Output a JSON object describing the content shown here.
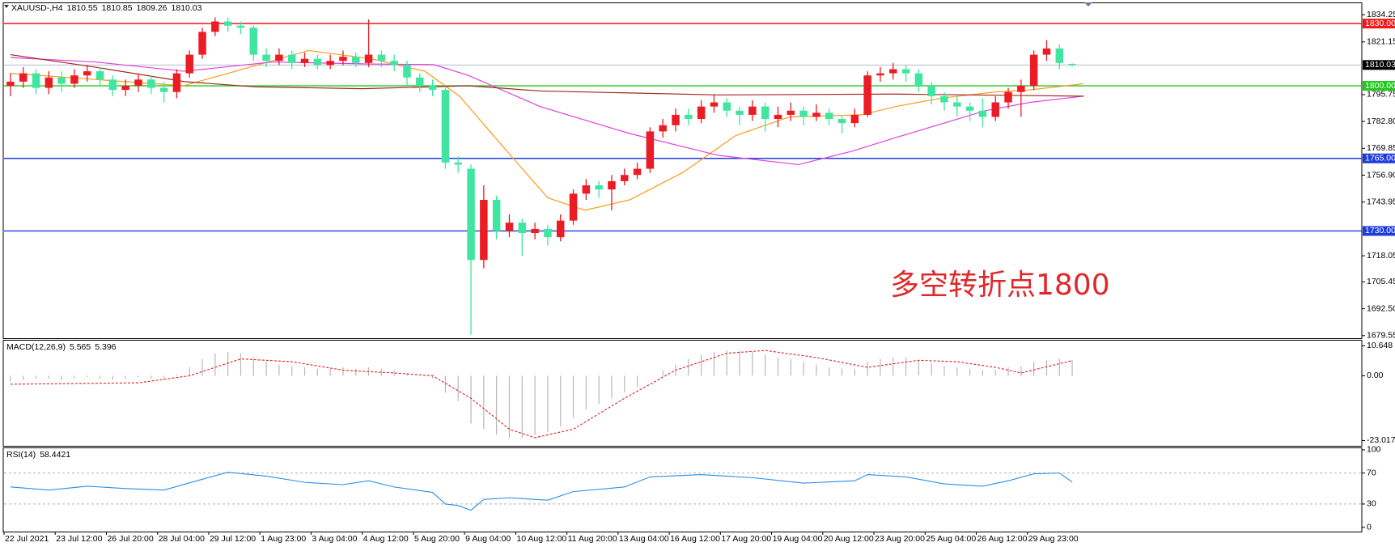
{
  "chart_data": [
    {
      "type": "candlestick",
      "title": "XAUUSD-,H4",
      "categories": [
        "22 Jul 2021",
        null,
        null,
        null,
        "23 Jul 12:00",
        null,
        null,
        null,
        "26 Jul 20:00",
        null,
        null,
        null,
        "28 Jul 04:00",
        null,
        null,
        null,
        "29 Jul 12:00",
        null,
        null,
        null,
        "1 Aug 23:00",
        null,
        null,
        null,
        "3 Aug 04:00",
        null,
        null,
        null,
        "4 Aug 12:00",
        null,
        null,
        null,
        "5 Aug 20:00",
        null,
        null,
        null,
        "9 Aug 04:00",
        null,
        null,
        null,
        "10 Aug 12:00",
        null,
        null,
        null,
        "11 Aug 20:00",
        null,
        null,
        null,
        "13 Aug 04:00",
        null,
        null,
        null,
        "16 Aug 12:00",
        null,
        null,
        null,
        "17 Aug 20:00",
        null,
        null,
        null,
        "19 Aug 04:00",
        null,
        null,
        null,
        "20 Aug 12:00",
        null,
        null,
        null,
        "23 Aug 20:00",
        null,
        null,
        null,
        "25 Aug 04:00",
        null,
        null,
        null,
        "26 Aug 12:00",
        null,
        null,
        null,
        "29 Aug 23:00",
        null,
        null,
        null
      ],
      "open": [
        1800,
        1802,
        1806,
        1799,
        1804,
        1801,
        1805,
        1807,
        1803,
        1798,
        1800,
        1803,
        1799,
        1797,
        1806,
        1815,
        1826,
        1831,
        1829,
        1828,
        1815,
        1812,
        1815,
        1811,
        1813,
        1810,
        1812,
        1814,
        1811,
        1815,
        1812,
        1810,
        1804,
        1800,
        1798,
        1763,
        1760,
        1716,
        1745,
        1730,
        1734,
        1729,
        1731,
        1727,
        1735,
        1748,
        1752,
        1750,
        1754,
        1757,
        1760,
        1778,
        1781,
        1786,
        1784,
        1790,
        1792,
        1788,
        1786,
        1790,
        1784,
        1786,
        1788,
        1785,
        1787,
        1784,
        1782,
        1786,
        1805,
        1806,
        1808,
        1806,
        1800,
        1795,
        1792,
        1790,
        1788,
        1785,
        1792,
        1797,
        1800,
        1815,
        1818,
        1810.55
      ],
      "high": [
        1806,
        1809,
        1808,
        1807,
        1807,
        1808,
        1810,
        1809,
        1805,
        1803,
        1806,
        1805,
        1802,
        1808,
        1817,
        1828,
        1833,
        1833,
        1831,
        1829,
        1818,
        1818,
        1817,
        1816,
        1815,
        1815,
        1817,
        1816,
        1832,
        1817,
        1815,
        1812,
        1806,
        1803,
        1799,
        1766,
        1762,
        1752,
        1747,
        1738,
        1736,
        1734,
        1733,
        1738,
        1750,
        1755,
        1754,
        1757,
        1760,
        1763,
        1780,
        1784,
        1789,
        1789,
        1793,
        1796,
        1794,
        1790,
        1793,
        1792,
        1790,
        1792,
        1790,
        1791,
        1789,
        1786,
        1789,
        1807,
        1809,
        1811,
        1810,
        1808,
        1802,
        1797,
        1795,
        1792,
        1794,
        1795,
        1799,
        1803,
        1817,
        1822,
        1820,
        1810.85
      ],
      "low": [
        1795,
        1799,
        1796,
        1796,
        1797,
        1799,
        1802,
        1800,
        1795,
        1795,
        1797,
        1796,
        1792,
        1794,
        1804,
        1813,
        1824,
        1826,
        1825,
        1812,
        1809,
        1810,
        1808,
        1809,
        1808,
        1808,
        1810,
        1809,
        1809,
        1809,
        1807,
        1800,
        1797,
        1795,
        1760,
        1758,
        1680,
        1712,
        1726,
        1727,
        1718,
        1726,
        1723,
        1725,
        1733,
        1745,
        1746,
        1740,
        1752,
        1755,
        1758,
        1775,
        1778,
        1781,
        1782,
        1787,
        1785,
        1781,
        1783,
        1778,
        1780,
        1783,
        1781,
        1783,
        1781,
        1777,
        1780,
        1785,
        1802,
        1803,
        1802,
        1797,
        1791,
        1788,
        1785,
        1783,
        1780,
        1783,
        1789,
        1785,
        1798,
        1812,
        1808,
        1809.26
      ],
      "close": [
        1802,
        1806,
        1799,
        1804,
        1801,
        1805,
        1807,
        1803,
        1798,
        1800,
        1803,
        1799,
        1797,
        1806,
        1815,
        1826,
        1831,
        1829,
        1828,
        1815,
        1812,
        1815,
        1811,
        1813,
        1810,
        1812,
        1814,
        1811,
        1815,
        1812,
        1810,
        1804,
        1800,
        1798,
        1763,
        1762,
        1716,
        1745,
        1730,
        1734,
        1729,
        1731,
        1727,
        1735,
        1748,
        1752,
        1750,
        1754,
        1757,
        1760,
        1778,
        1781,
        1786,
        1784,
        1790,
        1792,
        1788,
        1786,
        1790,
        1784,
        1786,
        1788,
        1785,
        1787,
        1784,
        1782,
        1786,
        1805,
        1806,
        1808,
        1806,
        1800,
        1795,
        1792,
        1790,
        1788,
        1785,
        1792,
        1797,
        1800,
        1815,
        1818,
        1811,
        1810.03
      ],
      "up_color": "#ec1c24",
      "down_color": "#3ee6a0",
      "price_line_color": "#b4bccb",
      "series": [
        {
          "color": "#ff9a1a",
          "x": [
            0,
            13.5,
            17,
            23.3,
            28.2,
            32.4,
            35.1,
            38.6,
            42,
            44.9,
            48.4,
            52.5,
            56.7,
            60.9,
            66.5,
            69.2,
            72.7,
            76.9,
            79.7,
            83.9
          ],
          "values": [
            1806,
            1800,
            1806,
            1817,
            1813,
            1807,
            1795,
            1770,
            1746,
            1740,
            1745,
            1758,
            1776,
            1785,
            1786,
            1790,
            1794,
            1797,
            1798,
            1801
          ]
        },
        {
          "color": "#e040e0",
          "x": [
            0,
            6.6,
            13.6,
            20.5,
            28.2,
            33.1,
            35.8,
            41.4,
            48.4,
            55.3,
            61.6,
            65.8,
            69.2,
            76.2,
            79.7,
            83.9
          ],
          "values": [
            1813.6,
            1811.5,
            1807,
            1811.5,
            1810.5,
            1810.2,
            1805,
            1790,
            1777,
            1766.5,
            1762,
            1768.5,
            1775,
            1788,
            1792,
            1795
          ]
        },
        {
          "color": "#a0281e",
          "x": [
            0,
            6.6,
            13.6,
            19.1,
            27.5,
            35.8,
            41.4,
            55.3,
            69.2,
            83.9
          ],
          "values": [
            1815,
            1809,
            1802,
            1799.5,
            1798.6,
            1800,
            1797.5,
            1795.6,
            1796,
            1795
          ]
        }
      ],
      "levels": [
        {
          "value": 1830,
          "label": "1830.00",
          "color": "#f01818"
        },
        {
          "value": 1800,
          "label": "1800.00",
          "color": "#22c81e"
        },
        {
          "value": 1765,
          "label": "1765.00",
          "color": "#1e3cdc"
        },
        {
          "value": 1730,
          "label": "1730.00",
          "color": "#1e3cdc"
        }
      ],
      "annotation": "多空转折点1800",
      "ylim": [
        1678.3,
        1839.8
      ],
      "yticks": [
        1834.25,
        1821.15,
        1795.75,
        {
          "value": 1782.8,
          "label": "1782.80"
        },
        1769.85,
        {
          "value": 1756.9,
          "label": "1756.90"
        },
        1743.95,
        1718.05,
        1705.45,
        {
          "value": 1692.5,
          "label": "1692.50"
        },
        1679.55
      ]
    },
    {
      "type": "macd",
      "title": "MACD(12,26,9)",
      "hist_color": "#b8b8b8",
      "signal_color": "#e02020",
      "values": [
        -2,
        -1.5,
        -1,
        -1,
        -1.5,
        -1,
        -0.5,
        -1,
        -1.5,
        -1,
        -0.5,
        -1,
        -1,
        0.5,
        3,
        6,
        8,
        8.5,
        8,
        6.5,
        5,
        4,
        3.5,
        3,
        2.5,
        2.5,
        3,
        2.5,
        3,
        2.5,
        2,
        1,
        0,
        -1,
        -6,
        -9,
        -17,
        -19,
        -21,
        -22,
        -22,
        -21,
        -20,
        -18,
        -15,
        -12,
        -10,
        -8,
        -6,
        -4,
        0,
        2,
        4,
        6,
        7.5,
        8.5,
        9,
        9,
        8.5,
        7.5,
        6.5,
        6,
        5,
        4,
        3,
        2.5,
        2.5,
        5,
        6,
        6.5,
        6.5,
        5.5,
        4.5,
        3.5,
        3,
        2.5,
        2,
        2,
        3,
        3.5,
        5,
        5.5,
        6,
        5.565
      ],
      "signal": {
        "x": [
          0,
          10,
          14,
          18,
          22,
          26,
          30,
          33,
          36,
          39,
          41,
          44,
          48,
          52,
          56,
          59,
          63,
          67,
          71,
          74,
          77,
          79,
          83
        ],
        "values": [
          -3,
          -2.5,
          0,
          6,
          5,
          2,
          1,
          0,
          -8,
          -19,
          -22,
          -19,
          -8,
          2,
          8,
          9,
          6.5,
          3,
          5.5,
          5,
          3,
          1,
          5.396
        ]
      },
      "ylim": [
        -24.9,
        12.5
      ],
      "yticks": [
        10.648,
        {
          "value": 0,
          "label": "0.00"
        },
        -23.017
      ]
    },
    {
      "type": "line",
      "title": "RSI(14)",
      "color": "#2a8ee6",
      "x": [
        0,
        3,
        6,
        9,
        12,
        15,
        17,
        20,
        23,
        26,
        28,
        30,
        33,
        34,
        35,
        36,
        37,
        39,
        42,
        44,
        48,
        50,
        54,
        58,
        62,
        66,
        67,
        70,
        73,
        76,
        78,
        80,
        82,
        83
      ],
      "values": [
        52,
        48,
        53,
        50,
        48,
        62,
        71,
        66,
        58,
        55,
        60,
        52,
        45,
        30,
        28,
        22,
        36,
        38,
        35,
        46,
        52,
        65,
        68,
        64,
        57,
        60,
        68,
        65,
        56,
        53,
        60,
        69,
        70,
        58.4421
      ],
      "levels": [
        70,
        30
      ],
      "ylim": [
        -5.6,
        102
      ],
      "yticks": [
        100,
        70,
        30,
        0
      ]
    }
  ]
}
